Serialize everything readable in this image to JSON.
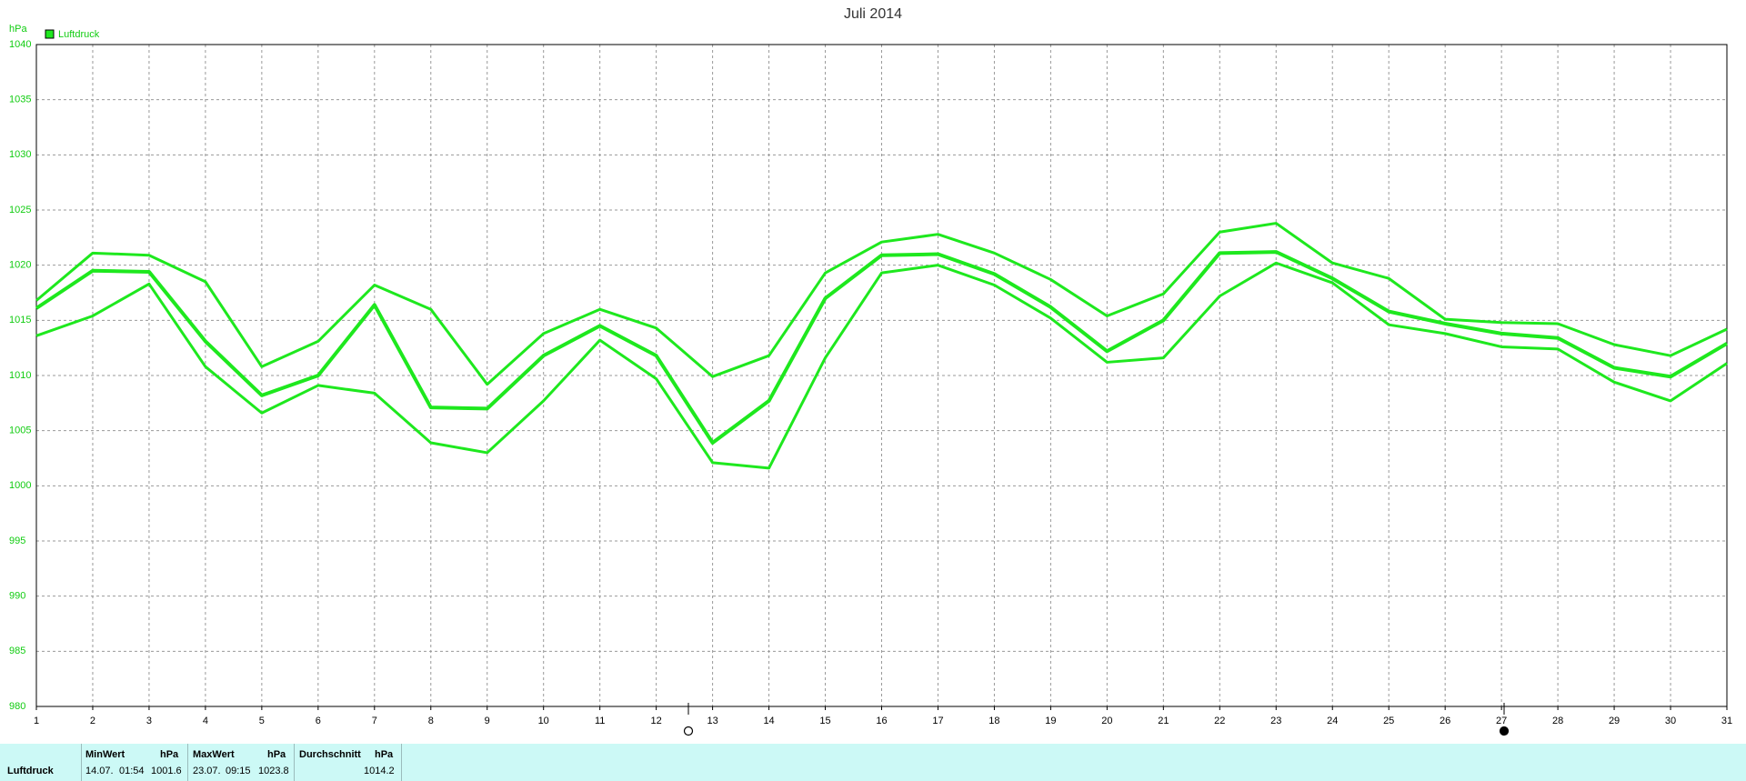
{
  "chart_data": {
    "type": "line",
    "title": "Juli 2014",
    "y_label": "hPa",
    "x": [
      1,
      2,
      3,
      4,
      5,
      6,
      7,
      8,
      9,
      10,
      11,
      12,
      13,
      14,
      15,
      16,
      17,
      18,
      19,
      20,
      21,
      22,
      23,
      24,
      25,
      26,
      27,
      28,
      29,
      30,
      31
    ],
    "xlim": [
      1,
      31
    ],
    "xticks": [
      1,
      2,
      3,
      4,
      5,
      6,
      7,
      8,
      9,
      10,
      11,
      12,
      13,
      14,
      15,
      16,
      17,
      18,
      19,
      20,
      21,
      22,
      23,
      24,
      25,
      26,
      27,
      28,
      29,
      30,
      31
    ],
    "ylim": [
      980,
      1040
    ],
    "yticks": [
      980,
      985,
      990,
      995,
      1000,
      1005,
      1010,
      1015,
      1020,
      1025,
      1030,
      1035,
      1040
    ],
    "grid": true,
    "legend": "upper left",
    "series": [
      {
        "name": "Luftdruck",
        "color": "#1ee81e",
        "width": 4,
        "values": [
          1016.1,
          1019.5,
          1019.4,
          1013.1,
          1008.2,
          1010.0,
          1016.4,
          1007.1,
          1007.0,
          1011.8,
          1014.5,
          1011.8,
          1003.9,
          1007.7,
          1017.0,
          1020.9,
          1021.0,
          1019.2,
          1016.2,
          1012.2,
          1015.0,
          1021.1,
          1021.2,
          1018.8,
          1015.8,
          1014.7,
          1013.8,
          1013.4,
          1010.7,
          1009.9,
          1012.9
        ]
      },
      {
        "color": "#1ee81e",
        "width": 3,
        "values": [
          1016.8,
          1021.1,
          1020.9,
          1018.5,
          1010.8,
          1013.1,
          1018.2,
          1016.0,
          1009.2,
          1013.8,
          1016.0,
          1014.3,
          1009.9,
          1011.8,
          1019.3,
          1022.1,
          1022.8,
          1021.1,
          1018.7,
          1015.4,
          1017.4,
          1023.0,
          1023.8,
          1020.2,
          1018.8,
          1015.1,
          1014.8,
          1014.7,
          1012.8,
          1011.8,
          1014.2
        ]
      },
      {
        "color": "#1ee81e",
        "width": 3,
        "values": [
          1013.6,
          1015.4,
          1018.3,
          1010.8,
          1006.6,
          1009.1,
          1008.4,
          1003.9,
          1003.0,
          1007.7,
          1013.2,
          1009.7,
          1002.1,
          1001.6,
          1011.6,
          1019.3,
          1020.0,
          1018.2,
          1015.2,
          1011.2,
          1011.6,
          1017.2,
          1020.2,
          1018.4,
          1014.6,
          1013.8,
          1012.6,
          1012.4,
          1009.4,
          1007.7,
          1011.1
        ]
      }
    ]
  },
  "stats": {
    "row_label": "Luftdruck",
    "min": {
      "header": "MinWert",
      "unit": "hPa",
      "date": "14.07.",
      "time": "01:54",
      "value": 1001.6
    },
    "max": {
      "header": "MaxWert",
      "unit": "hPa",
      "date": "23.07.",
      "time": "09:15",
      "value": 1023.8
    },
    "avg": {
      "header": "Durchschnitt",
      "unit": "hPa",
      "value": 1014.2
    }
  }
}
